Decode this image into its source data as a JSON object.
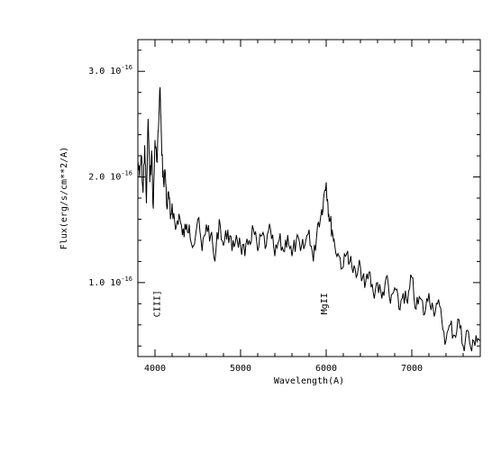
{
  "chart_data": {
    "type": "line",
    "xlabel": "Wavelength(A)",
    "ylabel": "Flux(erg/s/cm**2/A)",
    "xlim": [
      3800,
      7800
    ],
    "ylim": [
      3e-17,
      3.3e-16
    ],
    "x_ticks": [
      {
        "value": 4000,
        "label": "4000"
      },
      {
        "value": 5000,
        "label": "5000"
      },
      {
        "value": 6000,
        "label": "6000"
      },
      {
        "value": 7000,
        "label": "7000"
      }
    ],
    "y_ticks": [
      {
        "value": 1e-16,
        "mantissa": "1.0",
        "base": "10",
        "exponent": "-16"
      },
      {
        "value": 2e-16,
        "mantissa": "2.0",
        "base": "10",
        "exponent": "-16"
      },
      {
        "value": 3e-16,
        "mantissa": "3.0",
        "base": "10",
        "exponent": "-16"
      }
    ],
    "annotations": [
      {
        "text": "CIII]",
        "x": 4060,
        "y": 8e-17
      },
      {
        "text": "MgII",
        "x": 6010,
        "y": 8e-17
      }
    ],
    "grid": false,
    "series": [
      {
        "x": [
          3800,
          3820,
          3840,
          3860,
          3880,
          3900,
          3920,
          3940,
          3960,
          3980,
          4000,
          4020,
          4040,
          4060,
          4080,
          4100,
          4120,
          4140,
          4160,
          4180,
          4200,
          4240,
          4280,
          4320,
          4360,
          4400,
          4450,
          4500,
          4550,
          4600,
          4650,
          4700,
          4750,
          4800,
          4850,
          4900,
          4950,
          5000,
          5050,
          5100,
          5150,
          5200,
          5250,
          5300,
          5350,
          5400,
          5450,
          5500,
          5550,
          5600,
          5650,
          5700,
          5750,
          5800,
          5850,
          5900,
          5940,
          5970,
          6000,
          6020,
          6040,
          6070,
          6100,
          6150,
          6200,
          6250,
          6300,
          6350,
          6400,
          6450,
          6500,
          6550,
          6600,
          6650,
          6700,
          6750,
          6800,
          6850,
          6900,
          6950,
          7000,
          7050,
          7100,
          7150,
          7200,
          7250,
          7300,
          7350,
          7400,
          7450,
          7500,
          7550,
          7600,
          7650,
          7700,
          7750,
          7800
        ],
        "y": [
          2.15e-16,
          2e-16,
          2.2e-16,
          1.85e-16,
          2.3e-16,
          1.75e-16,
          2.55e-16,
          1.95e-16,
          2.25e-16,
          1.7e-16,
          2.35e-16,
          2.15e-16,
          2.45e-16,
          2.85e-16,
          2.2e-16,
          1.95e-16,
          2.05e-16,
          1.7e-16,
          1.85e-16,
          1.6e-16,
          1.75e-16,
          1.5e-16,
          1.65e-16,
          1.45e-16,
          1.5e-16,
          1.55e-16,
          1.35e-16,
          1.6e-16,
          1.3e-16,
          1.55e-16,
          1.45e-16,
          1.2e-16,
          1.6e-16,
          1.35e-16,
          1.5e-16,
          1.3e-16,
          1.45e-16,
          1.35e-16,
          1.25e-16,
          1.4e-16,
          1.5e-16,
          1.3e-16,
          1.45e-16,
          1.35e-16,
          1.5e-16,
          1.25e-16,
          1.4e-16,
          1.3e-16,
          1.45e-16,
          1.25e-16,
          1.4e-16,
          1.3e-16,
          1.35e-16,
          1.5e-16,
          1.2e-16,
          1.55e-16,
          1.65e-16,
          1.8e-16,
          1.95e-16,
          1.75e-16,
          1.6e-16,
          1.5e-16,
          1.35e-16,
          1.25e-16,
          1.15e-16,
          1.3e-16,
          1.15e-16,
          1.05e-16,
          1.15e-16,
          9.5e-17,
          1.1e-16,
          9e-17,
          1e-16,
          8.5e-17,
          1.05e-16,
          8e-17,
          9.5e-17,
          7.5e-17,
          9e-17,
          8e-17,
          1.05e-16,
          7.5e-17,
          8.5e-17,
          7e-17,
          9e-17,
          7.5e-17,
          8e-17,
          6.5e-17,
          4.5e-17,
          6e-17,
          5e-17,
          6.5e-17,
          4e-17,
          5.5e-17,
          3.5e-17,
          5e-17,
          4.5e-17
        ]
      }
    ]
  }
}
